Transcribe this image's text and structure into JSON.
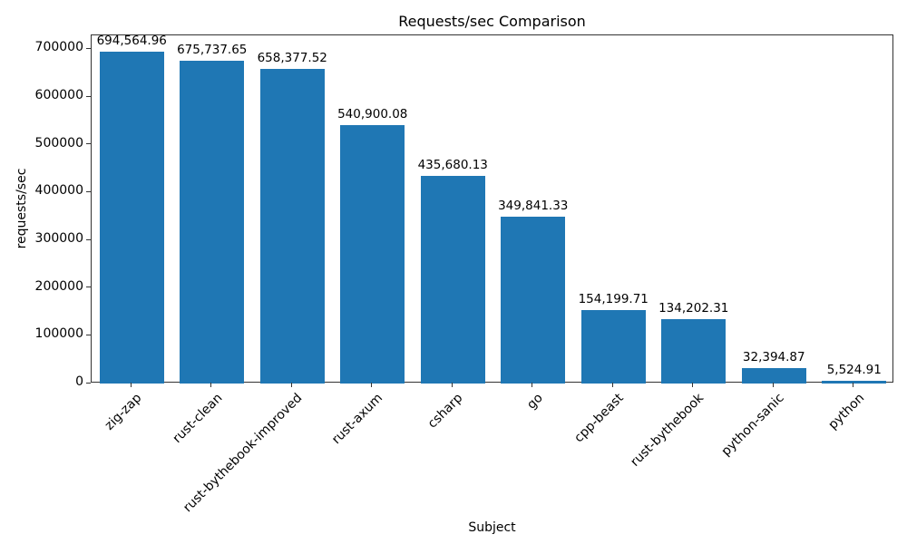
{
  "chart_data": {
    "type": "bar",
    "title": "Requests/sec Comparison",
    "xlabel": "Subject",
    "ylabel": "requests/sec",
    "categories": [
      "zig-zap",
      "rust-clean",
      "rust-bythebook-improved",
      "rust-axum",
      "csharp",
      "go",
      "cpp-beast",
      "rust-bythebook",
      "python-sanic",
      "python"
    ],
    "values": [
      694564.96,
      675737.65,
      658377.52,
      540900.08,
      435680.13,
      349841.33,
      154199.71,
      134202.31,
      32394.87,
      5524.91
    ],
    "value_labels": [
      "694,564.96",
      "675,737.65",
      "658,377.52",
      "540,900.08",
      "435,680.13",
      "349,841.33",
      "154,199.71",
      "134,202.31",
      "32,394.87",
      "5,524.91"
    ],
    "yticks": [
      0,
      100000,
      200000,
      300000,
      400000,
      500000,
      600000,
      700000
    ],
    "ylim": [
      0,
      729293
    ],
    "bar_color": "#1f77b4",
    "grid": false,
    "legend": "none",
    "x_tick_rotation_deg": 45
  }
}
